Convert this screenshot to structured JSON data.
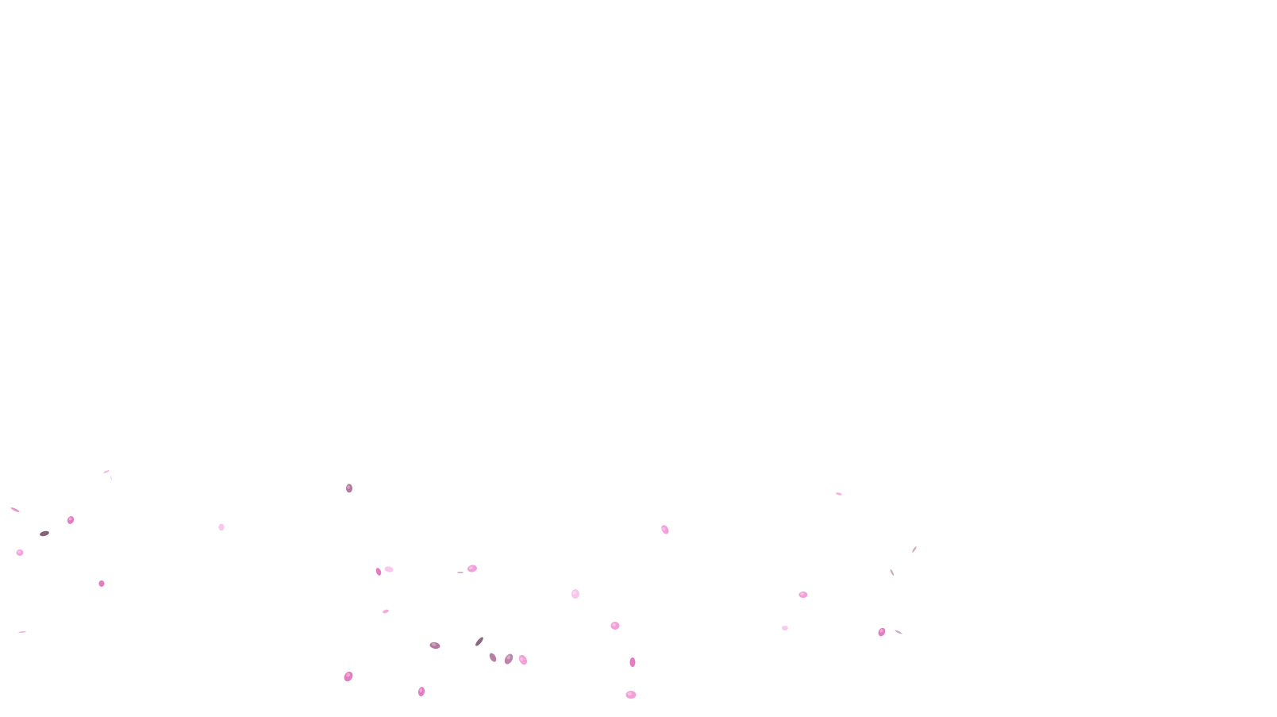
{
  "scene": {
    "background_color": "#ffffff",
    "effect": "falling-petals",
    "petal_colors": {
      "pink": "#f39bd6",
      "deep_pink": "#e06fba",
      "light_pink": "#f8c4ea",
      "mauve": "#b0709a",
      "dusk": "#7d5a72"
    }
  }
}
